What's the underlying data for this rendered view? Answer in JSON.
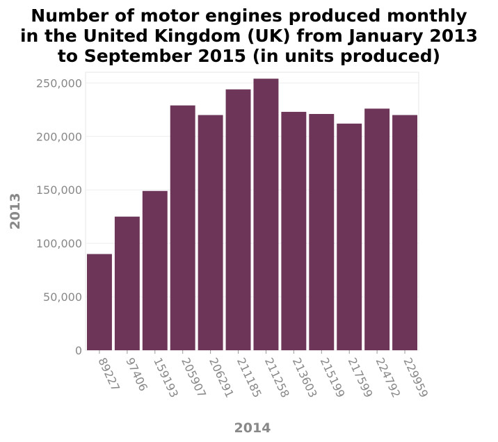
{
  "chart_data": {
    "type": "bar",
    "title_lines": [
      "Number of motor engines produced monthly",
      "in the United Kingdom (UK) from January 2013",
      "to September 2015 (in units produced)"
    ],
    "xlabel": "2014",
    "ylabel": "2013",
    "categories": [
      "89227",
      "97406",
      "159193",
      "205907",
      "206291",
      "211185",
      "211258",
      "213603",
      "215199",
      "217599",
      "224792",
      "229959"
    ],
    "values": [
      90000,
      125000,
      149000,
      229000,
      220000,
      244000,
      254000,
      223000,
      221000,
      212000,
      226000,
      220000
    ],
    "ylim": [
      0,
      260000
    ],
    "yticks": [
      0,
      50000,
      100000,
      150000,
      200000,
      250000
    ],
    "ytick_labels": [
      "0",
      "50,000",
      "100,000",
      "150,000",
      "200,000",
      "250,000"
    ],
    "grid": true,
    "legend": "none",
    "bar_color": "#6d3558"
  }
}
